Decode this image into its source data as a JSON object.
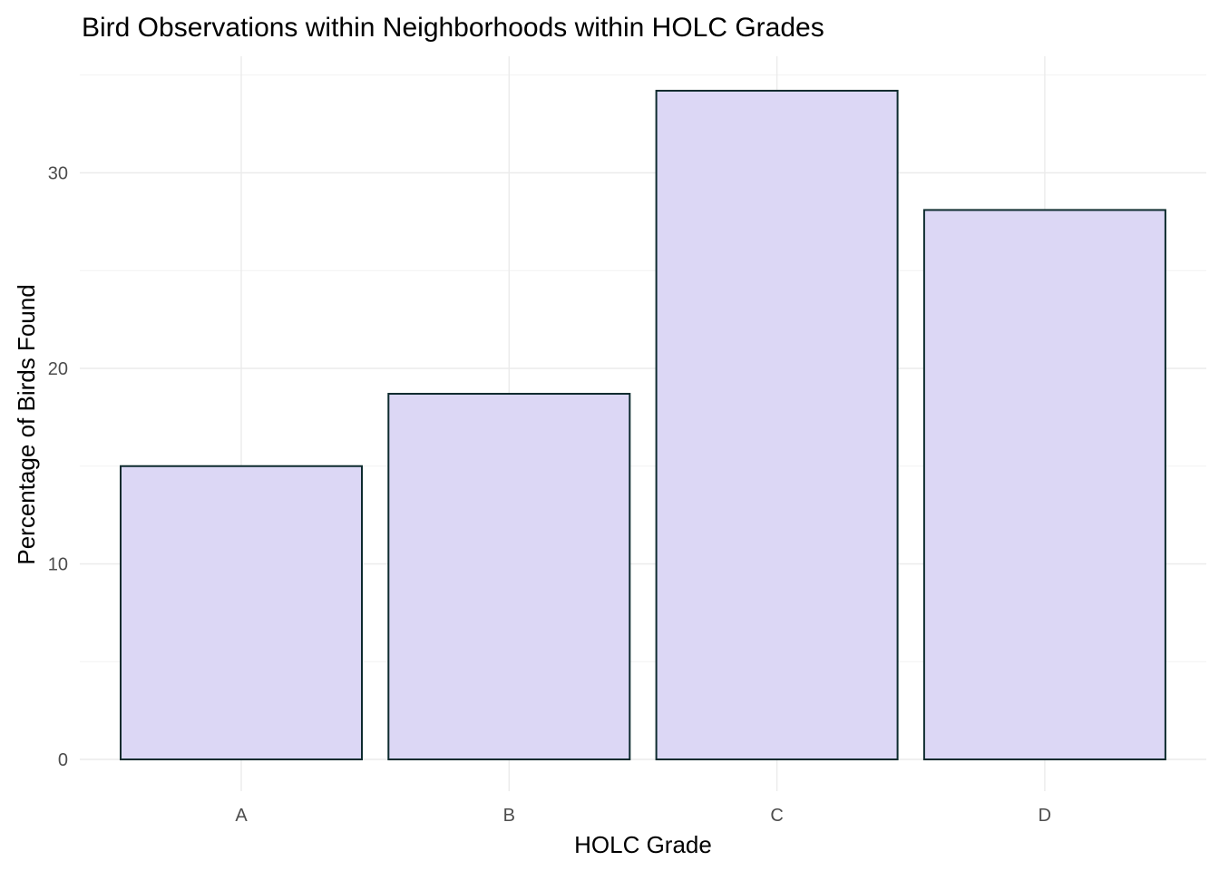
{
  "chart_data": {
    "type": "bar",
    "title": "Bird Observations within Neighborhoods within HOLC Grades",
    "xlabel": "HOLC Grade",
    "ylabel": "Percentage of Birds Found",
    "categories": [
      "A",
      "B",
      "C",
      "D"
    ],
    "values": [
      15.0,
      18.7,
      34.2,
      28.1
    ],
    "ylim": [
      0,
      35
    ],
    "y_ticks": [
      "0",
      "10",
      "20",
      "30"
    ],
    "grid": true,
    "legend": "none",
    "bar_fill": "#dcd7f5",
    "bar_stroke": "#0d2b2e"
  }
}
